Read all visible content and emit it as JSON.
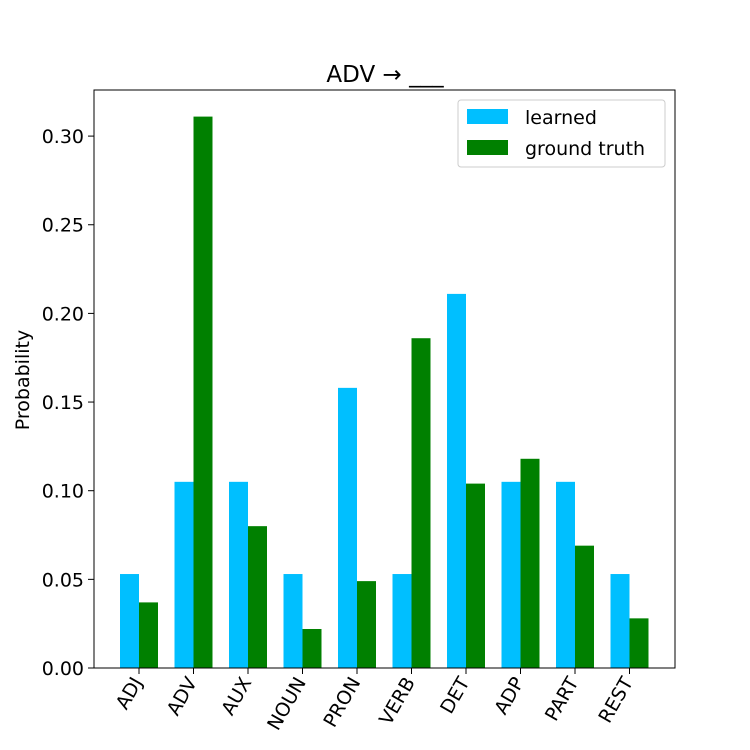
{
  "chart_data": {
    "type": "bar",
    "title": "ADV → ___",
    "xlabel": "",
    "ylabel": "Probability",
    "categories": [
      "ADJ",
      "ADV",
      "AUX",
      "NOUN",
      "PRON",
      "VERB",
      "DET",
      "ADP",
      "PART",
      "REST"
    ],
    "series": [
      {
        "name": "learned",
        "color": "#00bfff",
        "values": [
          0.053,
          0.105,
          0.105,
          0.053,
          0.158,
          0.053,
          0.211,
          0.105,
          0.105,
          0.053
        ]
      },
      {
        "name": "ground truth",
        "color": "#008000",
        "values": [
          0.037,
          0.311,
          0.08,
          0.022,
          0.049,
          0.186,
          0.104,
          0.118,
          0.069,
          0.028
        ]
      }
    ],
    "ylim": [
      0,
      0.326
    ],
    "yticks": [
      "0.00",
      "0.05",
      "0.10",
      "0.15",
      "0.20",
      "0.25",
      "0.30"
    ],
    "grid": false,
    "legend_position": "top-right"
  }
}
